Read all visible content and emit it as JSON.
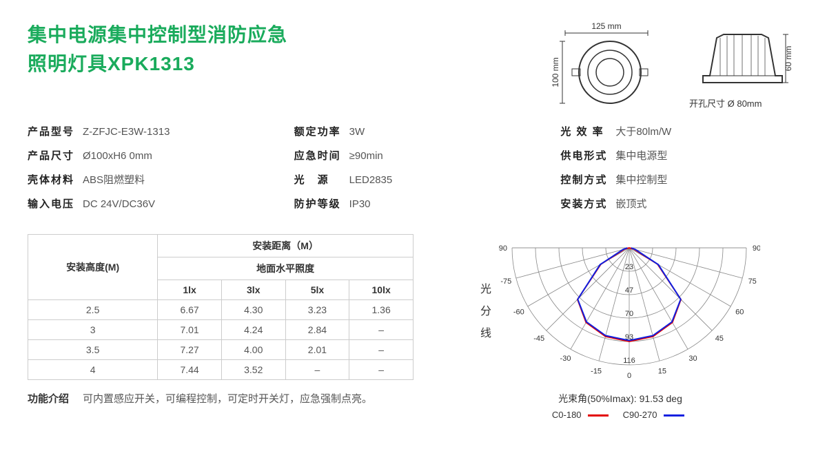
{
  "title": {
    "line1": "集中电源集中控制型消防应急",
    "line2": "照明灯具XPK1313",
    "color": "#1aab5c",
    "fontsize": 28
  },
  "dimensions": {
    "width_mm_label": "125 mm",
    "height_mm_label": "100 mm",
    "depth_mm_label": "60 mm",
    "cutout_label": "开孔尺寸 Ø 80mm"
  },
  "specs": {
    "col1": [
      {
        "label": "产品型号",
        "value": "Z-ZFJC-E3W-1313"
      },
      {
        "label": "产品尺寸",
        "value": "Ø100xH6 0mm"
      },
      {
        "label": "壳体材料",
        "value": "ABS阻燃塑料"
      },
      {
        "label": "输入电压",
        "value": "DC 24V/DC36V"
      }
    ],
    "col2": [
      {
        "label": "额定功率",
        "value": "3W"
      },
      {
        "label": "应急时间",
        "value": "≥90min"
      },
      {
        "label": "光　源",
        "value": "LED2835"
      },
      {
        "label": "防护等级",
        "value": "IP30"
      }
    ],
    "col3": [
      {
        "label": "光 效 率",
        "value": "大于80lm/W"
      },
      {
        "label": "供电形式",
        "value": "集中电源型"
      },
      {
        "label": "控制方式",
        "value": "集中控制型"
      },
      {
        "label": "安装方式",
        "value": "嵌顶式"
      }
    ]
  },
  "table": {
    "header_rowlabel": "安装高度(M)",
    "header_dist": "安装距离（M）",
    "header_illum": "地面水平照度",
    "lux_cols": [
      "1lx",
      "3lx",
      "5lx",
      "10lx"
    ],
    "rows": [
      {
        "h": "2.5",
        "vals": [
          "6.67",
          "4.30",
          "3.23",
          "1.36"
        ]
      },
      {
        "h": "3",
        "vals": [
          "7.01",
          "4.24",
          "2.84",
          "–"
        ]
      },
      {
        "h": "3.5",
        "vals": [
          "7.27",
          "4.00",
          "2.01",
          "–"
        ]
      },
      {
        "h": "4",
        "vals": [
          "7.44",
          "3.52",
          "–",
          "–"
        ]
      }
    ]
  },
  "function": {
    "label": "功能介绍",
    "text": "可内置感应开关，可编程控制，可定时开关灯，应急强制点亮。"
  },
  "polar": {
    "vert_label": [
      "光",
      "分",
      "线"
    ],
    "angle_labels": [
      "-90",
      "-75",
      "-60",
      "-45",
      "-30",
      "-15",
      "0",
      "15",
      "30",
      "45",
      "60",
      "75",
      "90"
    ],
    "ring_labels": [
      "23",
      "47",
      "70",
      "93",
      "116"
    ],
    "caption": "光束角(50%Imax): 91.53 deg",
    "series": [
      {
        "name": "C0-180",
        "color": "#e30000"
      },
      {
        "name": "C90-270",
        "color": "#1020e0"
      }
    ],
    "grid_color": "#888888",
    "beam_path_approx": [
      [
        -90,
        0.0
      ],
      [
        -75,
        0.05
      ],
      [
        -60,
        0.35
      ],
      [
        -45,
        0.78
      ],
      [
        -30,
        0.92
      ],
      [
        -15,
        0.98
      ],
      [
        0,
        1.0
      ],
      [
        15,
        0.98
      ],
      [
        30,
        0.92
      ],
      [
        45,
        0.78
      ],
      [
        60,
        0.35
      ],
      [
        75,
        0.05
      ],
      [
        90,
        0.0
      ]
    ]
  },
  "colors": {
    "text": "#333333",
    "muted": "#555555",
    "border": "#cccccc",
    "bg": "#ffffff"
  }
}
